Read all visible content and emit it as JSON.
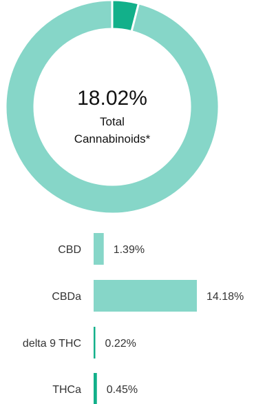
{
  "chart_data": [
    {
      "type": "pie",
      "style": "donut",
      "center_value": "18.02%",
      "center_label": [
        "Total",
        "Cannabinoids*"
      ],
      "slices": [
        {
          "value": 4.0,
          "color": "#12b08a"
        },
        {
          "value": 96.0,
          "color": "#86d6c8"
        }
      ]
    },
    {
      "type": "bar",
      "orientation": "horizontal",
      "color": "#86d6c8",
      "accent_color": "#12b08a",
      "categories": [
        "CBD",
        "CBDa",
        "delta 9 THC",
        "THCa"
      ],
      "values": [
        1.39,
        14.18,
        0.22,
        0.45
      ],
      "value_labels": [
        "1.39%",
        "14.18%",
        "0.22%",
        "0.45%"
      ],
      "bar_colors": [
        "#86d6c8",
        "#86d6c8",
        "#12b08a",
        "#12b08a"
      ]
    }
  ]
}
